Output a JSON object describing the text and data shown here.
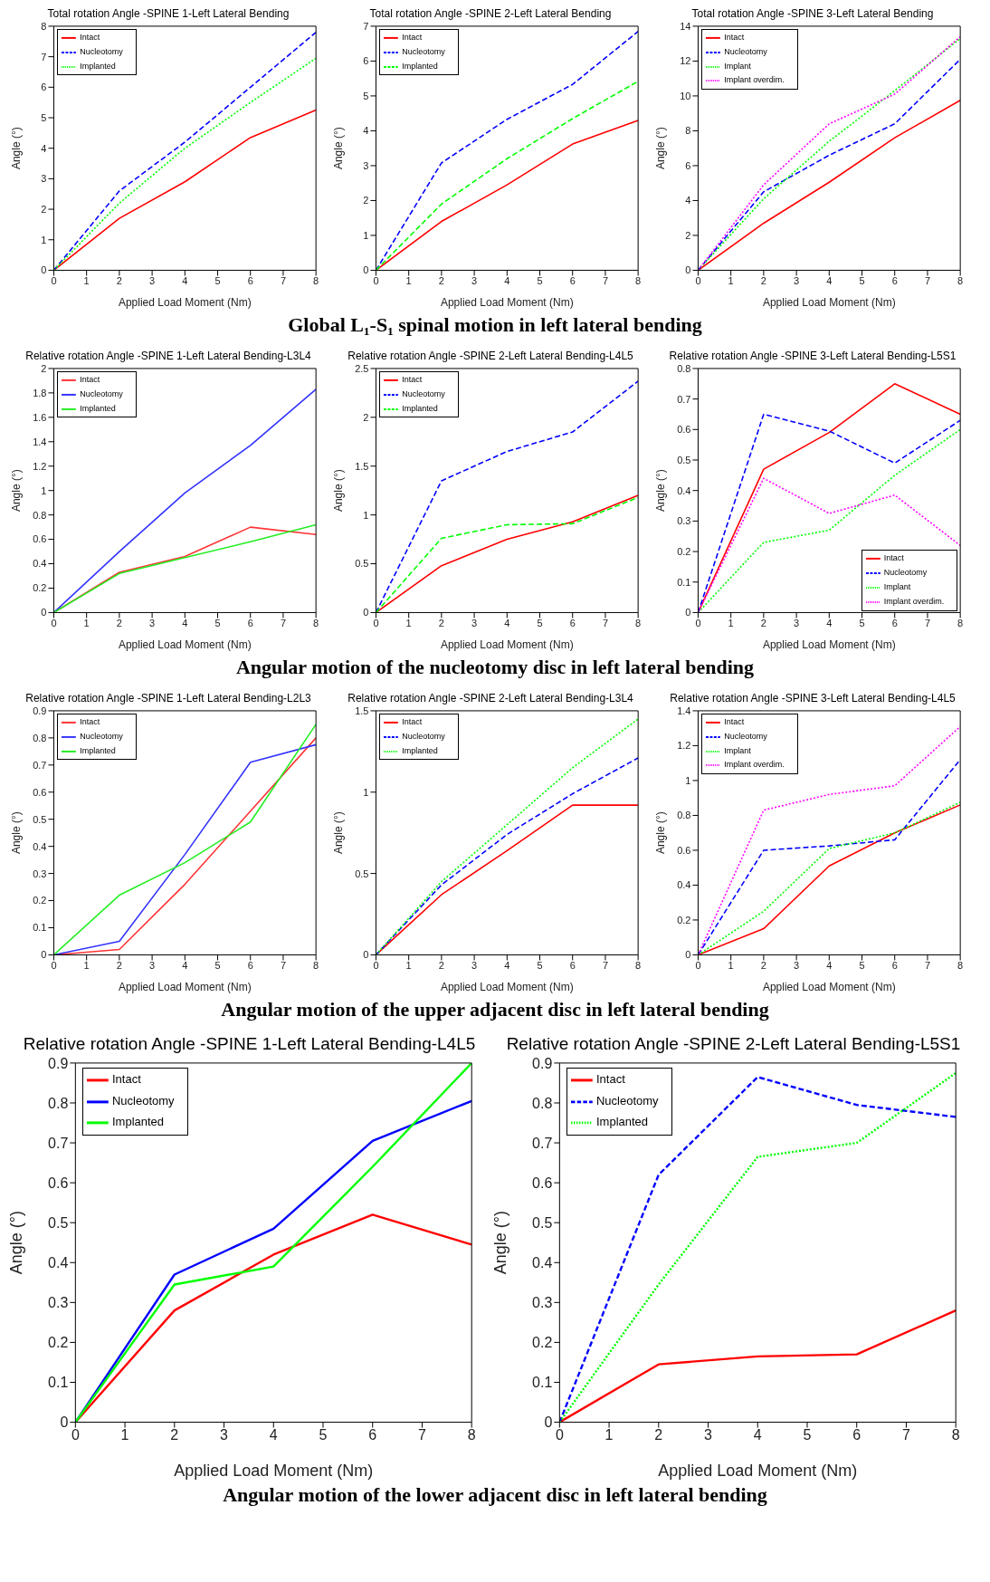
{
  "chart_data": [
    {
      "type": "line",
      "title": "Total rotation Angle -SPINE 1-Left Lateral Bending",
      "xlabel": "Applied Load Moment (Nm)",
      "ylabel": "Angle (°)",
      "x": [
        0,
        2,
        4,
        6,
        8
      ],
      "xlim": [
        0,
        8
      ],
      "xticks": [
        0,
        1,
        2,
        3,
        4,
        5,
        6,
        7,
        8
      ],
      "ylim": [
        0,
        8
      ],
      "yticks": [
        0,
        1,
        2,
        3,
        4,
        5,
        6,
        7,
        8
      ],
      "legend": "top left",
      "series": [
        {
          "name": "Intact",
          "color": "#ff0000",
          "line_style": "solid",
          "values": [
            0,
            1.7,
            2.9,
            4.35,
            5.25
          ]
        },
        {
          "name": "Nucleotomy",
          "color": "#0000ff",
          "line_style": "dashed",
          "values": [
            0,
            2.6,
            4.2,
            6.0,
            7.8
          ]
        },
        {
          "name": "Implanted",
          "color": "#00ff00",
          "line_style": "dotted",
          "values": [
            0,
            2.2,
            4.0,
            5.5,
            6.95
          ]
        }
      ]
    },
    {
      "type": "line",
      "title": "Total rotation Angle -SPINE 2-Left Lateral Bending",
      "xlabel": "Applied Load Moment (Nm)",
      "ylabel": "Angle (°)",
      "x": [
        0,
        2,
        4,
        6,
        8
      ],
      "xlim": [
        0,
        8
      ],
      "xticks": [
        0,
        1,
        2,
        3,
        4,
        5,
        6,
        7,
        8
      ],
      "ylim": [
        0,
        7
      ],
      "yticks": [
        0,
        1,
        2,
        3,
        4,
        5,
        6,
        7
      ],
      "legend": "top left",
      "series": [
        {
          "name": "Intact",
          "color": "#ff0000",
          "line_style": "solid",
          "values": [
            0,
            1.4,
            2.45,
            3.62,
            4.3
          ]
        },
        {
          "name": "Nucleotomy",
          "color": "#0000ff",
          "line_style": "dashed",
          "values": [
            0,
            3.08,
            4.33,
            5.33,
            6.85
          ]
        },
        {
          "name": "Implanted",
          "color": "#00ff00",
          "line_style": "dashed",
          "values": [
            0,
            1.9,
            3.2,
            4.35,
            5.42
          ]
        }
      ]
    },
    {
      "type": "line",
      "title": "Total rotation Angle -SPINE 3-Left Lateral Bending",
      "xlabel": "Applied Load Moment (Nm)",
      "ylabel": "Angle (°)",
      "x": [
        0,
        2,
        4,
        6,
        8
      ],
      "xlim": [
        0,
        8
      ],
      "xticks": [
        0,
        1,
        2,
        3,
        4,
        5,
        6,
        7,
        8
      ],
      "ylim": [
        0,
        14
      ],
      "yticks": [
        0,
        2,
        4,
        6,
        8,
        10,
        12,
        14
      ],
      "legend": "top left",
      "series": [
        {
          "name": "Intact",
          "color": "#ff0000",
          "line_style": "solid",
          "values": [
            0,
            2.7,
            5.05,
            7.6,
            9.75
          ]
        },
        {
          "name": "Nucleotomy",
          "color": "#0000ff",
          "line_style": "dashed",
          "values": [
            0,
            4.5,
            6.6,
            8.4,
            12.1
          ]
        },
        {
          "name": "Implant",
          "color": "#00ff00",
          "line_style": "dotted",
          "values": [
            0,
            4.1,
            7.4,
            10.3,
            13.3
          ]
        },
        {
          "name": "Implant overdim.",
          "color": "#ff00ff",
          "line_style": "dotted",
          "values": [
            0,
            4.9,
            8.4,
            10.1,
            13.4
          ]
        }
      ]
    },
    {
      "type": "other",
      "annotations": [
        "Global L₁-S₁ spinal motion in left lateral bending"
      ]
    },
    {
      "type": "line",
      "title": "Relative rotation Angle -SPINE 1-Left Lateral Bending-L3L4",
      "xlabel": "Applied Load Moment (Nm)",
      "ylabel": "Angle (°)",
      "x": [
        0,
        2,
        4,
        6,
        8
      ],
      "xlim": [
        0,
        8
      ],
      "xticks": [
        0,
        1,
        2,
        3,
        4,
        5,
        6,
        7,
        8
      ],
      "ylim": [
        0,
        2
      ],
      "yticks": [
        0,
        0.2,
        0.4,
        0.6,
        0.8,
        1,
        1.2,
        1.4,
        1.6,
        1.8,
        2
      ],
      "legend": "top left",
      "series": [
        {
          "name": "Intact",
          "color": "#ff3333",
          "line_style": "solid",
          "values": [
            0,
            0.33,
            0.46,
            0.7,
            0.64
          ]
        },
        {
          "name": "Nucleotomy",
          "color": "#3333ff",
          "line_style": "solid",
          "values": [
            0,
            0.5,
            0.98,
            1.37,
            1.83
          ]
        },
        {
          "name": "Implanted",
          "color": "#22ee22",
          "line_style": "solid",
          "values": [
            0,
            0.32,
            0.45,
            0.58,
            0.72
          ]
        }
      ]
    },
    {
      "type": "line",
      "title": "Relative rotation Angle -SPINE 2-Left Lateral Bending-L4L5",
      "xlabel": "Applied Load Moment (Nm)",
      "ylabel": "Angle (°)",
      "x": [
        0,
        2,
        4,
        6,
        8
      ],
      "xlim": [
        0,
        8
      ],
      "xticks": [
        0,
        1,
        2,
        3,
        4,
        5,
        6,
        7,
        8
      ],
      "ylim": [
        0,
        2.5
      ],
      "yticks": [
        0,
        0.5,
        1,
        1.5,
        2,
        2.5
      ],
      "legend": "top left",
      "series": [
        {
          "name": "Intact",
          "color": "#ff0000",
          "line_style": "solid",
          "values": [
            0,
            0.48,
            0.75,
            0.93,
            1.2
          ]
        },
        {
          "name": "Nucleotomy",
          "color": "#0000ff",
          "line_style": "dashed",
          "values": [
            0,
            1.35,
            1.65,
            1.85,
            2.37
          ]
        },
        {
          "name": "Implanted",
          "color": "#00ff00",
          "line_style": "dashed",
          "values": [
            0,
            0.76,
            0.9,
            0.91,
            1.18
          ]
        }
      ]
    },
    {
      "type": "line",
      "title": "Relative rotation Angle -SPINE 3-Left Lateral Bending-L5S1",
      "xlabel": "Applied Load Moment (Nm)",
      "ylabel": "Angle (°)",
      "x": [
        0,
        2,
        4,
        6,
        8
      ],
      "xlim": [
        0,
        8
      ],
      "xticks": [
        0,
        1,
        2,
        3,
        4,
        5,
        6,
        7,
        8
      ],
      "ylim": [
        0,
        0.8
      ],
      "yticks": [
        0,
        0.1,
        0.2,
        0.3,
        0.4,
        0.5,
        0.6,
        0.7,
        0.8
      ],
      "legend": "bottom right",
      "series": [
        {
          "name": "Intact",
          "color": "#ff0000",
          "line_style": "solid",
          "values": [
            0,
            0.47,
            0.59,
            0.75,
            0.65
          ]
        },
        {
          "name": "Nucleotomy",
          "color": "#0000ff",
          "line_style": "dashed",
          "values": [
            0,
            0.65,
            0.595,
            0.49,
            0.63
          ]
        },
        {
          "name": "Implant",
          "color": "#00ff00",
          "line_style": "dotted",
          "values": [
            0,
            0.23,
            0.27,
            0.45,
            0.6
          ]
        },
        {
          "name": "Implant overdim.",
          "color": "#ff00ff",
          "line_style": "dotted",
          "values": [
            0,
            0.44,
            0.325,
            0.385,
            0.22
          ]
        }
      ]
    },
    {
      "type": "other",
      "annotations": [
        "Angular motion of the nucleotomy disc in left lateral bending"
      ]
    },
    {
      "type": "line",
      "title": "Relative rotation Angle -SPINE 1-Left Lateral Bending-L2L3",
      "xlabel": "Applied Load Moment (Nm)",
      "ylabel": "Angle (°)",
      "x": [
        0,
        2,
        4,
        6,
        8
      ],
      "xlim": [
        0,
        8
      ],
      "xticks": [
        0,
        1,
        2,
        3,
        4,
        5,
        6,
        7,
        8
      ],
      "ylim": [
        0,
        0.9
      ],
      "yticks": [
        0,
        0.1,
        0.2,
        0.3,
        0.4,
        0.5,
        0.6,
        0.7,
        0.8,
        0.9
      ],
      "legend": "top left",
      "series": [
        {
          "name": "Intact",
          "color": "#ff3333",
          "line_style": "solid",
          "values": [
            0,
            0.02,
            0.26,
            0.53,
            0.8
          ]
        },
        {
          "name": "Nucleotomy",
          "color": "#3333ff",
          "line_style": "solid",
          "values": [
            0,
            0.05,
            0.37,
            0.71,
            0.775
          ]
        },
        {
          "name": "Implanted",
          "color": "#22ee22",
          "line_style": "solid",
          "values": [
            0,
            0.22,
            0.34,
            0.49,
            0.85
          ]
        }
      ]
    },
    {
      "type": "line",
      "title": "Relative rotation Angle -SPINE 2-Left Lateral Bending-L3L4",
      "xlabel": "Applied Load Moment (Nm)",
      "ylabel": "Angle (°)",
      "x": [
        0,
        2,
        4,
        6,
        8
      ],
      "xlim": [
        0,
        8
      ],
      "xticks": [
        0,
        1,
        2,
        3,
        4,
        5,
        6,
        7,
        8
      ],
      "ylim": [
        0,
        1.5
      ],
      "yticks": [
        0,
        0.5,
        1,
        1.5
      ],
      "legend": "top left",
      "series": [
        {
          "name": "Intact",
          "color": "#ff0000",
          "line_style": "solid",
          "values": [
            0,
            0.37,
            0.64,
            0.92,
            0.92
          ]
        },
        {
          "name": "Nucleotomy",
          "color": "#0000ff",
          "line_style": "dashed",
          "values": [
            0,
            0.43,
            0.74,
            0.99,
            1.21
          ]
        },
        {
          "name": "Implanted",
          "color": "#00ff00",
          "line_style": "dotted",
          "values": [
            0,
            0.45,
            0.8,
            1.15,
            1.45
          ]
        }
      ]
    },
    {
      "type": "line",
      "title": "Relative rotation Angle -SPINE 3-Left Lateral Bending-L4L5",
      "xlabel": "Applied Load Moment (Nm)",
      "ylabel": "Angle (°)",
      "x": [
        0,
        2,
        4,
        6,
        8
      ],
      "xlim": [
        0,
        8
      ],
      "xticks": [
        0,
        1,
        2,
        3,
        4,
        5,
        6,
        7,
        8
      ],
      "ylim": [
        0,
        1.4
      ],
      "yticks": [
        0,
        0.2,
        0.4,
        0.6,
        0.8,
        1,
        1.2,
        1.4
      ],
      "legend": "top left",
      "series": [
        {
          "name": "Intact",
          "color": "#ff0000",
          "line_style": "solid",
          "values": [
            0,
            0.15,
            0.51,
            0.7,
            0.86
          ]
        },
        {
          "name": "Nucleotomy",
          "color": "#0000ff",
          "line_style": "dashed",
          "values": [
            0,
            0.6,
            0.625,
            0.66,
            1.12
          ]
        },
        {
          "name": "Implant",
          "color": "#00ff00",
          "line_style": "dotted",
          "values": [
            0,
            0.25,
            0.61,
            0.7,
            0.875
          ]
        },
        {
          "name": "Implant overdim.",
          "color": "#ff00ff",
          "line_style": "dotted",
          "values": [
            0,
            0.83,
            0.92,
            0.97,
            1.31
          ]
        }
      ]
    },
    {
      "type": "other",
      "annotations": [
        "Angular motion of the upper adjacent disc in left lateral bending"
      ]
    },
    {
      "type": "line",
      "title": "Relative rotation Angle -SPINE 1-Left Lateral Bending-L4L5",
      "xlabel": "Applied Load Moment (Nm)",
      "ylabel": "Angle (°)",
      "x": [
        0,
        2,
        4,
        6,
        8
      ],
      "xlim": [
        0,
        8
      ],
      "xticks": [
        0,
        1,
        2,
        3,
        4,
        5,
        6,
        7,
        8
      ],
      "ylim": [
        0,
        0.9
      ],
      "yticks": [
        0,
        0.1,
        0.2,
        0.3,
        0.4,
        0.5,
        0.6,
        0.7,
        0.8,
        0.9
      ],
      "legend": "top left",
      "series": [
        {
          "name": "Intact",
          "color": "#ff0000",
          "line_style": "solid",
          "values": [
            0,
            0.28,
            0.42,
            0.52,
            0.445
          ]
        },
        {
          "name": "Nucleotomy",
          "color": "#0000ff",
          "line_style": "solid",
          "values": [
            0,
            0.37,
            0.485,
            0.705,
            0.805
          ]
        },
        {
          "name": "Implanted",
          "color": "#00ff00",
          "line_style": "solid",
          "values": [
            0,
            0.345,
            0.39,
            0.64,
            0.9
          ]
        }
      ]
    },
    {
      "type": "line",
      "title": "Relative rotation Angle -SPINE 2-Left Lateral Bending-L5S1",
      "xlabel": "Applied Load Moment (Nm)",
      "ylabel": "Angle (°)",
      "x": [
        0,
        2,
        4,
        6,
        8
      ],
      "xlim": [
        0,
        8
      ],
      "xticks": [
        0,
        1,
        2,
        3,
        4,
        5,
        6,
        7,
        8
      ],
      "ylim": [
        0,
        0.9
      ],
      "yticks": [
        0,
        0.1,
        0.2,
        0.3,
        0.4,
        0.5,
        0.6,
        0.7,
        0.8,
        0.9
      ],
      "legend": "top left",
      "series": [
        {
          "name": "Intact",
          "color": "#ff0000",
          "line_style": "solid",
          "values": [
            0,
            0.145,
            0.165,
            0.17,
            0.28
          ]
        },
        {
          "name": "Nucleotomy",
          "color": "#0000ff",
          "line_style": "dashed",
          "values": [
            0,
            0.62,
            0.865,
            0.795,
            0.765
          ]
        },
        {
          "name": "Implanted",
          "color": "#00ff00",
          "line_style": "dotted",
          "values": [
            0,
            0.345,
            0.665,
            0.7,
            0.875
          ]
        }
      ]
    },
    {
      "type": "other",
      "annotations": [
        "Angular motion of the lower adjacent disc in left lateral bending"
      ]
    }
  ]
}
